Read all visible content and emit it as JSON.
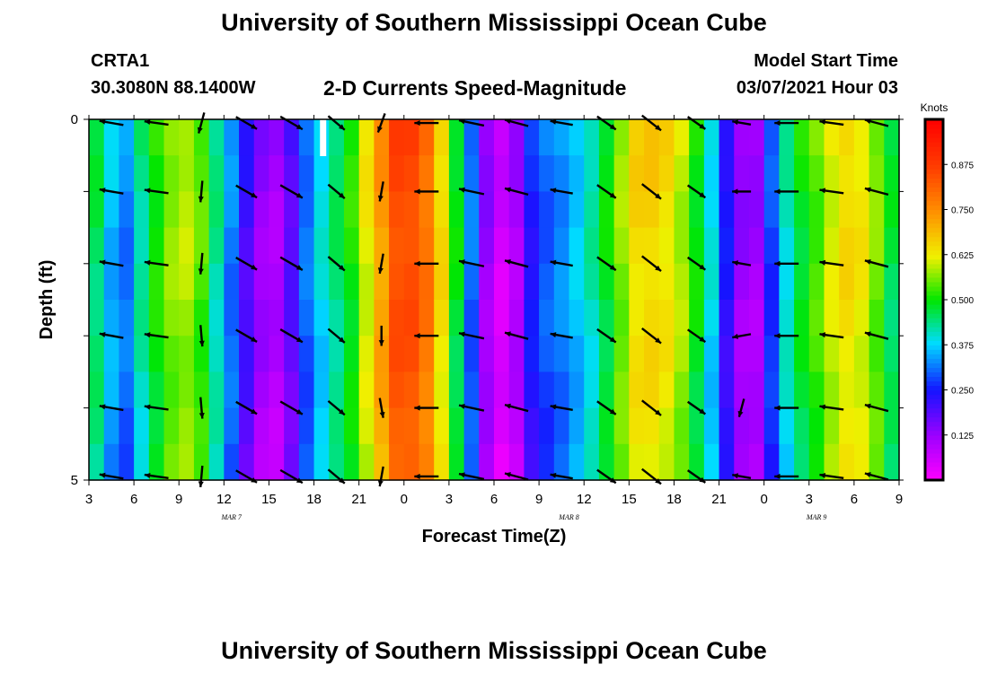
{
  "title_top": "University of Southern Mississippi Ocean Cube",
  "title_bottom": "University of Southern Mississippi Ocean Cube",
  "station_id": "CRTA1",
  "station_coords": "30.3080N 88.1400W",
  "plot_title": "2-D Currents Speed-Magnitude",
  "model_start_label": "Model Start Time",
  "model_start_value": "03/07/2021 Hour 03",
  "chart_data": {
    "type": "heatmap",
    "xlabel": "Forecast Time(Z)",
    "ylabel": "Depth (ft)",
    "x_ticks": [
      "3",
      "6",
      "9",
      "12",
      "15",
      "18",
      "21",
      "0",
      "3",
      "6",
      "9",
      "12",
      "15",
      "18",
      "21",
      "0",
      "3",
      "6",
      "9"
    ],
    "date_labels": [
      {
        "text": "MAR 7",
        "hour_index": 9.5
      },
      {
        "text": "MAR 8",
        "hour_index": 32
      },
      {
        "text": "MAR 9",
        "hour_index": 48.5
      }
    ],
    "y_ticks": [
      "0",
      "5"
    ],
    "depth_range": [
      0,
      5
    ],
    "colorbar_unit": "Knots",
    "colorbar_ticks": [
      0.125,
      0.25,
      0.375,
      0.5,
      0.625,
      0.75,
      0.875
    ],
    "colorbar_tick_labels": [
      "0.125",
      "0.250",
      "0.375",
      "0.500",
      "0.625",
      "0.750",
      "0.875"
    ],
    "colorbar_range": [
      0.0,
      1.0
    ],
    "hours_span": 54,
    "speed_by_hour": [
      0.47,
      0.37,
      0.33,
      0.44,
      0.52,
      0.58,
      0.6,
      0.55,
      0.44,
      0.33,
      0.22,
      0.14,
      0.12,
      0.2,
      0.32,
      0.4,
      0.46,
      0.52,
      0.63,
      0.74,
      0.86,
      0.86,
      0.8,
      0.66,
      0.5,
      0.32,
      0.14,
      0.07,
      0.12,
      0.26,
      0.31,
      0.34,
      0.38,
      0.43,
      0.5,
      0.58,
      0.66,
      0.67,
      0.65,
      0.6,
      0.51,
      0.4,
      0.25,
      0.14,
      0.13,
      0.29,
      0.42,
      0.5,
      0.55,
      0.62,
      0.66,
      0.64,
      0.57,
      0.48,
      0.38
    ],
    "arrow_rows_depth": [
      0.05,
      1.0,
      2.0,
      3.0,
      4.0,
      4.95
    ],
    "arrows": [
      {
        "hour": 4,
        "angle": 170,
        "len": 0.9
      },
      {
        "hour": 7,
        "angle": 172,
        "len": 0.9
      },
      {
        "hour": 12,
        "angle": 265,
        "len": 0.8
      },
      {
        "hour": 15,
        "angle": 330,
        "len": 0.9
      },
      {
        "hour": 18,
        "angle": 330,
        "len": 0.95
      },
      {
        "hour": 21,
        "angle": 320,
        "len": 0.8
      },
      {
        "hour": 0,
        "angle": 260,
        "len": 0.75
      },
      {
        "hour": 3,
        "angle": 180,
        "len": 0.9
      },
      {
        "hour": 6,
        "angle": 168,
        "len": 0.95
      },
      {
        "hour": 9,
        "angle": 165,
        "len": 0.9
      },
      {
        "hour": 12,
        "angle": 170,
        "len": 0.85
      },
      {
        "hour": 15,
        "angle": 325,
        "len": 0.85
      },
      {
        "hour": 18,
        "angle": 322,
        "len": 0.9
      },
      {
        "hour": 21,
        "angle": 325,
        "len": 0.8
      },
      {
        "hour": 0,
        "angle": 170,
        "len": 0.7
      },
      {
        "hour": 3,
        "angle": 180,
        "len": 0.9
      },
      {
        "hour": 6,
        "angle": 172,
        "len": 0.9
      },
      {
        "hour": 9,
        "angle": 165,
        "len": 0.9
      }
    ],
    "arrow_row_variation": [
      [
        0,
        0,
        -10,
        0,
        0,
        0,
        -10,
        0,
        0,
        0,
        0,
        0,
        0,
        0,
        0,
        0,
        0,
        0
      ],
      [
        0,
        0,
        0,
        0,
        0,
        0,
        0,
        0,
        0,
        0,
        0,
        0,
        0,
        0,
        10,
        0,
        0,
        0
      ],
      [
        0,
        0,
        0,
        0,
        0,
        0,
        0,
        0,
        0,
        0,
        0,
        0,
        0,
        0,
        0,
        0,
        0,
        0
      ],
      [
        0,
        0,
        10,
        0,
        0,
        0,
        10,
        0,
        0,
        0,
        0,
        0,
        0,
        0,
        20,
        0,
        0,
        0
      ],
      [
        0,
        0,
        10,
        0,
        0,
        0,
        20,
        0,
        0,
        0,
        0,
        0,
        0,
        0,
        85,
        0,
        0,
        0
      ],
      [
        0,
        0,
        0,
        0,
        0,
        0,
        0,
        0,
        0,
        0,
        0,
        0,
        0,
        0,
        0,
        0,
        0,
        0
      ]
    ]
  }
}
